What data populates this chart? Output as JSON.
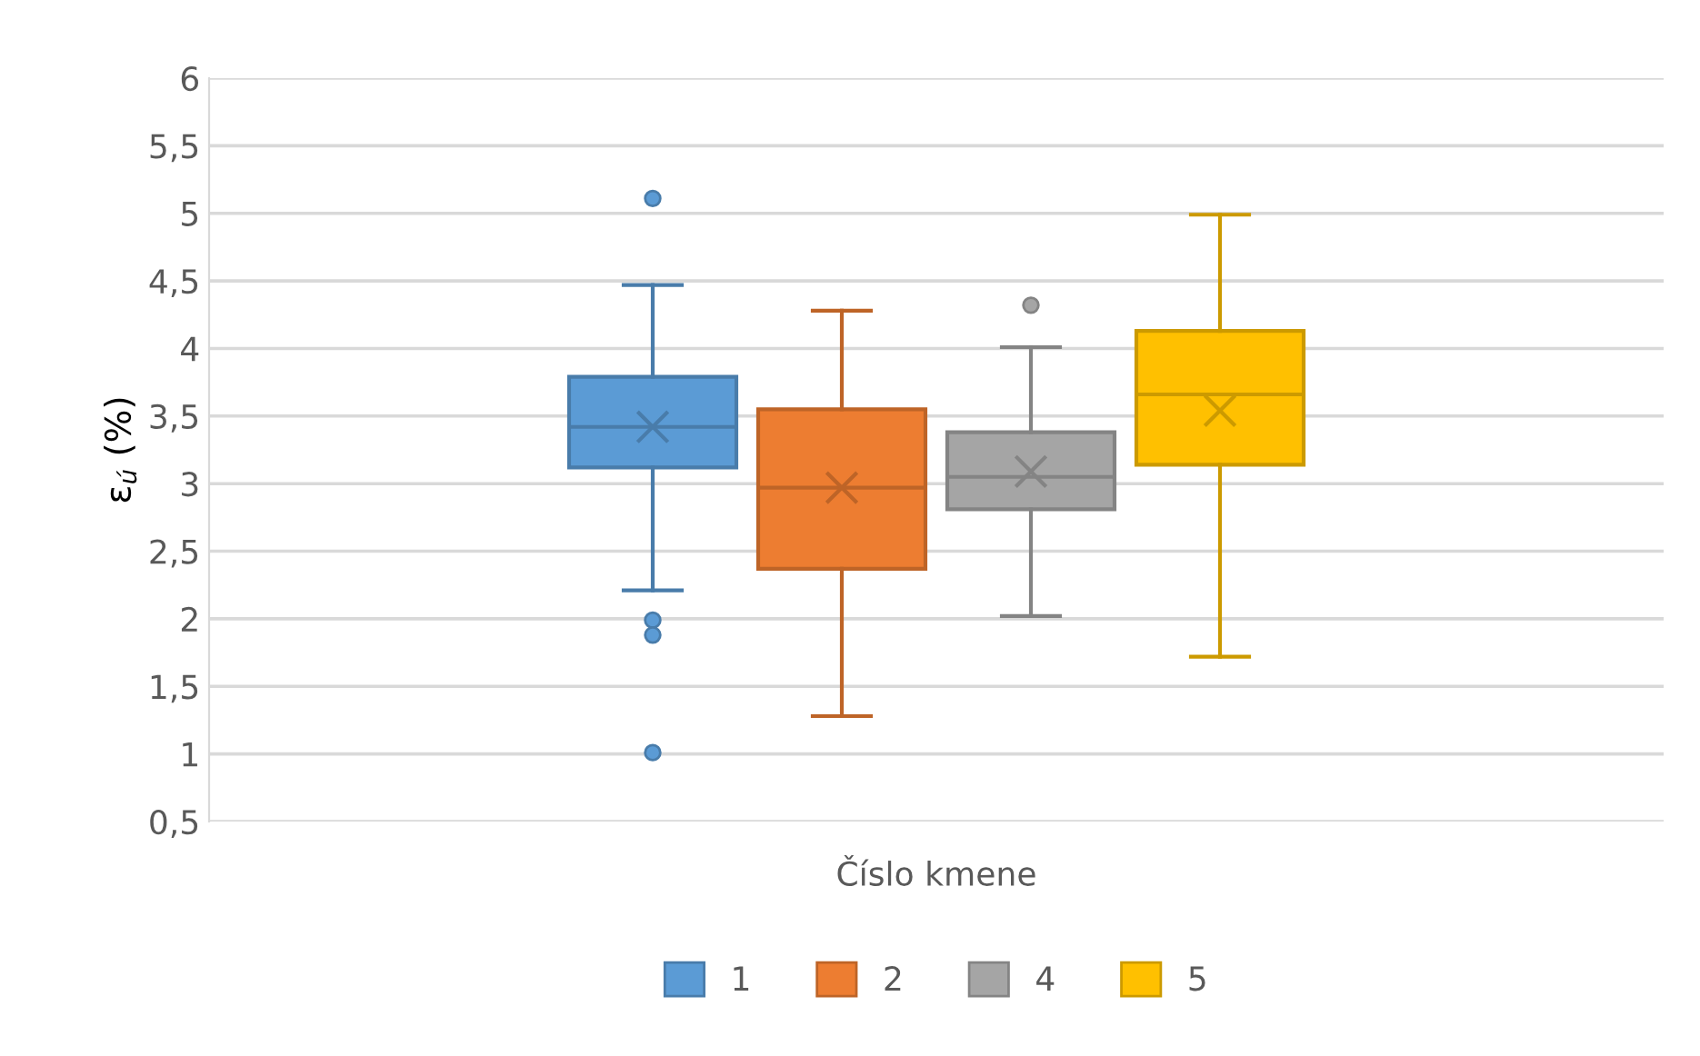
{
  "chart_data": {
    "type": "box",
    "xlabel": "Číslo kmene",
    "ylabel": "ε$_{ú}$ (%)",
    "categories": [
      null
    ],
    "ylim": [
      0.5,
      6
    ],
    "yticks": [
      {
        "value": 0.5,
        "label": "0,5"
      },
      1,
      {
        "value": 1.5,
        "label": "1,5"
      },
      2,
      {
        "value": 2.5,
        "label": "2,5"
      },
      3,
      {
        "value": 3.5,
        "label": "3,5"
      },
      4,
      {
        "value": 4.5,
        "label": "4,5"
      },
      5,
      {
        "value": 5.5,
        "label": "5,5"
      },
      6
    ],
    "grid": "y",
    "legend": "bottom",
    "marker": "circle",
    "series": [
      {
        "name": "1",
        "color": "#5b9bd5",
        "boxes": [
          {
            "low": 2.21,
            "q1": 3.12,
            "median": 3.42,
            "q3": 3.79,
            "high": 4.47,
            "mean": 3.42,
            "outliers": [
              5.11,
              1.99,
              1.88,
              1.01
            ]
          }
        ]
      },
      {
        "name": "2",
        "color": "#ed7d31",
        "boxes": [
          {
            "low": 1.28,
            "q1": 2.37,
            "median": 2.97,
            "q3": 3.55,
            "high": 4.28,
            "mean": 2.97
          }
        ]
      },
      {
        "name": "4",
        "color": "#a5a5a5",
        "boxes": [
          {
            "low": 2.02,
            "q1": 2.81,
            "median": 3.05,
            "q3": 3.38,
            "high": 4.01,
            "mean": 3.09,
            "outliers": [
              4.32
            ]
          }
        ]
      },
      {
        "name": "5",
        "color": "#ffc000",
        "boxes": [
          {
            "low": 1.72,
            "q1": 3.14,
            "median": 3.66,
            "q3": 4.13,
            "high": 4.99,
            "mean": 3.54
          }
        ]
      }
    ]
  }
}
